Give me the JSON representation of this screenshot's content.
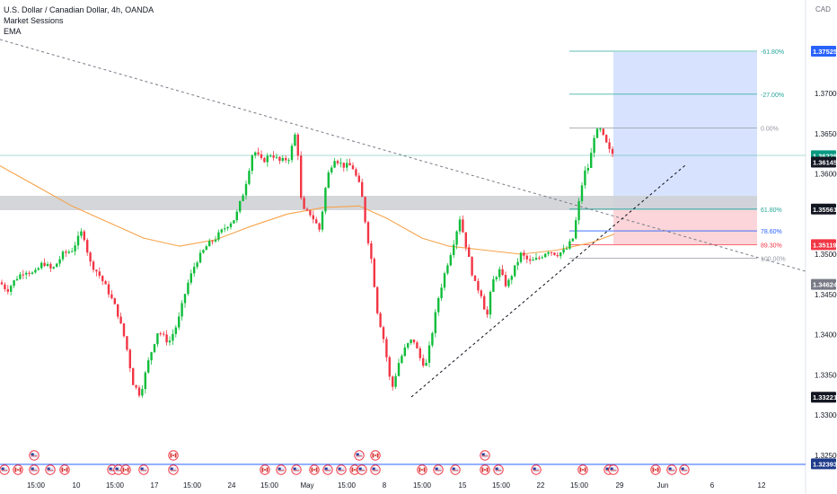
{
  "header": {
    "title": "U.S. Dollar / Canadian Dollar, 4h, OANDA",
    "indicators": [
      "Market Sessions",
      "EMA"
    ],
    "currency": "CAD"
  },
  "colors": {
    "up": "#089981",
    "up_bright": "#0fbd3a",
    "down": "#f23645",
    "ema": "#f7a34a",
    "fib_teal": "#26a69a",
    "fib_grey": "#9598a1",
    "fib_blue": "#2962ff",
    "fib_red": "#f23645",
    "zone": "#b2b5be",
    "target_zone": "#d7e3fe",
    "stop_zone": "#fbd5d9"
  },
  "price_axis": {
    "ticks": [
      "1.37000",
      "1.36500",
      "1.36000",
      "1.35000",
      "1.34500",
      "1.34000",
      "1.33500",
      "1.33000",
      "1.32500"
    ],
    "badges": [
      {
        "text": "1.37525",
        "kind": "blue"
      },
      {
        "text": "1.36225",
        "kind": "green"
      },
      {
        "text": "1.36145",
        "kind": "dark"
      },
      {
        "text": "1.35561",
        "kind": "dark"
      },
      {
        "text": "1.35119",
        "kind": "red"
      },
      {
        "text": "1.34624",
        "kind": "grey"
      },
      {
        "text": "1.33221",
        "kind": "dark"
      },
      {
        "text": "1.32393",
        "kind": "navy"
      }
    ]
  },
  "time_axis": {
    "labels": [
      "15:00",
      "10",
      "15:00",
      "17",
      "15:00",
      "24",
      "15:00",
      "May",
      "15:00",
      "8",
      "15:00",
      "15",
      "15:00",
      "22",
      "15:00",
      "29",
      "Jun",
      "6",
      "12"
    ]
  },
  "fib_levels": [
    {
      "label": "-61.80%",
      "value": 1.37525,
      "color": "fib_teal"
    },
    {
      "label": "-27.00%",
      "value": 1.3699,
      "color": "fib_teal"
    },
    {
      "label": "0.00%",
      "value": 1.3657,
      "color": "fib_grey"
    },
    {
      "label": "61.80%",
      "value": 1.35561,
      "color": "fib_teal"
    },
    {
      "label": "78.60%",
      "value": 1.3529,
      "color": "fib_blue"
    },
    {
      "label": "89.30%",
      "value": 1.35119,
      "color": "fib_red"
    },
    {
      "label": "100.00%",
      "value": 1.3495,
      "color": "fib_grey"
    }
  ],
  "events": {
    "row_top_flags": [
      "us",
      "ca",
      "us",
      "ca",
      "us",
      "us",
      "us",
      "ca"
    ],
    "row_bottom_count": 40
  }
}
